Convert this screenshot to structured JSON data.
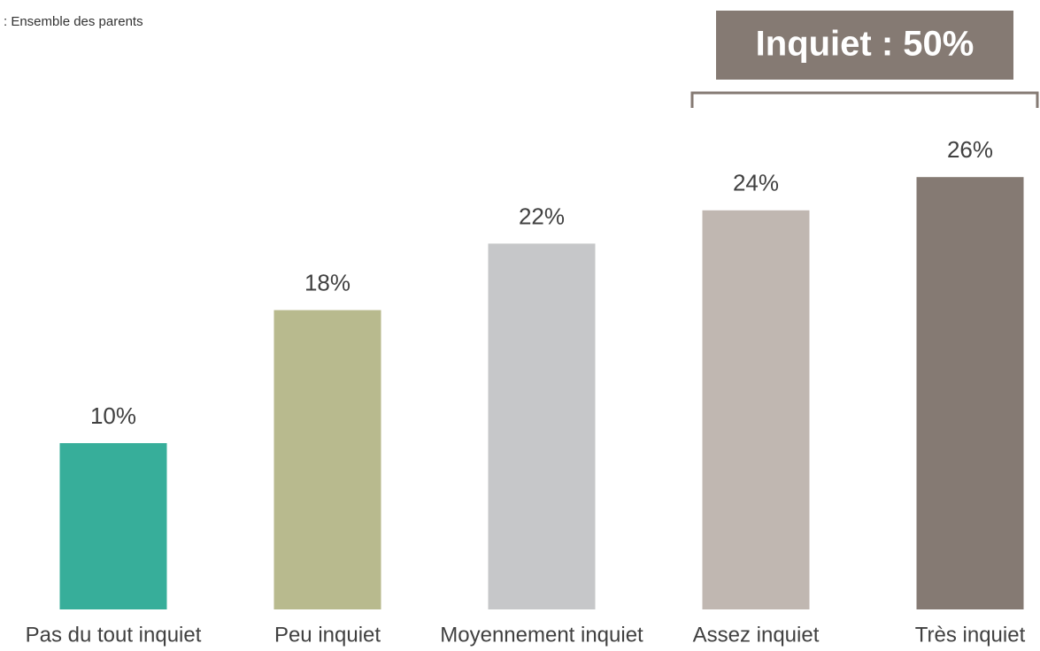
{
  "chart_data": {
    "type": "bar",
    "subtitle": ": Ensemble des parents",
    "categories": [
      "Pas du tout inquiet",
      "Peu inquiet",
      "Moyennement inquiet",
      "Assez inquiet",
      "Très inquiet"
    ],
    "values": [
      10,
      18,
      22,
      24,
      26
    ],
    "value_labels": [
      "10%",
      "18%",
      "22%",
      "24%",
      "26%"
    ],
    "colors": [
      "#37ae9a",
      "#b8ba8e",
      "#c6c7c9",
      "#c0b7b1",
      "#857a73"
    ],
    "ylim": [
      0,
      30
    ],
    "annotation": "Inquiet : 50%"
  }
}
